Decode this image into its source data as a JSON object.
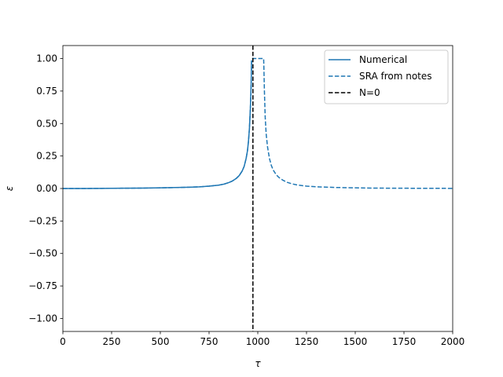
{
  "chart_data": {
    "type": "line",
    "xlabel": "τ",
    "ylabel": "ε",
    "xlim": [
      0,
      2000
    ],
    "ylim": [
      -1.1,
      1.1
    ],
    "xticks": [
      0,
      250,
      500,
      750,
      1000,
      1250,
      1500,
      1750,
      2000
    ],
    "xtick_labels": [
      "0",
      "250",
      "500",
      "750",
      "1000",
      "1250",
      "1500",
      "1750",
      "2000"
    ],
    "yticks": [
      -1.0,
      -0.75,
      -0.5,
      -0.25,
      0.0,
      0.25,
      0.5,
      0.75,
      1.0
    ],
    "ytick_labels": [
      "−1.00",
      "−0.75",
      "−0.50",
      "−0.25",
      "0.00",
      "0.25",
      "0.50",
      "0.75",
      "1.00"
    ],
    "grid": false,
    "legend_position": "top-right",
    "series": [
      {
        "name": "Numerical",
        "style": "solid",
        "color": "#1f77b4",
        "x": [
          0,
          100,
          200,
          300,
          400,
          500,
          600,
          650,
          700,
          750,
          800,
          825,
          850,
          870,
          890,
          905,
          920,
          930,
          940,
          947,
          952,
          957,
          962,
          966,
          968
        ],
        "y": [
          0.0,
          0.0,
          0.001,
          0.002,
          0.003,
          0.005,
          0.008,
          0.01,
          0.013,
          0.018,
          0.026,
          0.033,
          0.045,
          0.058,
          0.078,
          0.1,
          0.135,
          0.17,
          0.23,
          0.29,
          0.36,
          0.46,
          0.62,
          0.8,
          0.98
        ]
      },
      {
        "name": "SRA from notes",
        "style": "dashed",
        "color": "#1f77b4",
        "x": [
          0,
          100,
          200,
          300,
          400,
          500,
          600,
          650,
          700,
          750,
          800,
          825,
          850,
          870,
          890,
          905,
          920,
          930,
          940,
          947,
          952,
          957,
          962,
          966,
          968,
          970,
          1030,
          1031,
          1034,
          1038,
          1043,
          1050,
          1060,
          1070,
          1080,
          1095,
          1110,
          1130,
          1150,
          1175,
          1200,
          1250,
          1300,
          1400,
          1500,
          1600,
          1750,
          2000
        ],
        "y": [
          0.0,
          0.0,
          0.001,
          0.002,
          0.003,
          0.005,
          0.008,
          0.01,
          0.013,
          0.018,
          0.026,
          0.033,
          0.045,
          0.058,
          0.078,
          0.1,
          0.135,
          0.17,
          0.23,
          0.29,
          0.36,
          0.46,
          0.62,
          0.8,
          0.98,
          1.0,
          1.0,
          0.95,
          0.75,
          0.55,
          0.42,
          0.32,
          0.23,
          0.175,
          0.14,
          0.105,
          0.083,
          0.063,
          0.048,
          0.036,
          0.028,
          0.018,
          0.013,
          0.008,
          0.005,
          0.003,
          0.002,
          0.001
        ]
      },
      {
        "name": "N=0",
        "style": "dashed",
        "color": "#000000",
        "vline_x": 975
      }
    ]
  }
}
